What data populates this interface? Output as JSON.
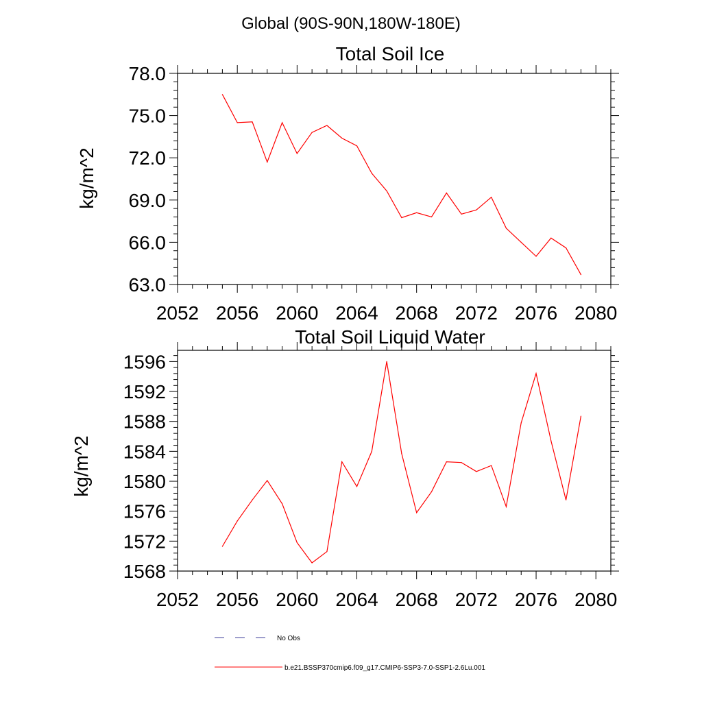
{
  "page": {
    "title": "Global (90S-90N,180W-180E)"
  },
  "legend": {
    "items": [
      {
        "label": "No Obs",
        "style": "dashed",
        "color": "#3d3d99"
      },
      {
        "label": "b.e21.BSSP370cmip6.f09_g17.CMIP6-SSP3-7.0-SSP1-2.6Lu.001",
        "style": "solid",
        "color": "#ff0000"
      }
    ]
  },
  "chart_data": [
    {
      "type": "line",
      "title": "Total Soil Ice",
      "xlabel": "",
      "ylabel": "kg/m^2",
      "xlim": [
        2052,
        2081
      ],
      "ylim": [
        63.0,
        78.0
      ],
      "xticks": [
        2052,
        2056,
        2060,
        2064,
        2068,
        2072,
        2076,
        2080
      ],
      "yticks": [
        63.0,
        66.0,
        69.0,
        72.0,
        75.0,
        78.0
      ],
      "ytick_labels": [
        "63.0",
        "66.0",
        "69.0",
        "72.0",
        "75.0",
        "78.0"
      ],
      "grid": false,
      "x": [
        2055,
        2056,
        2057,
        2058,
        2059,
        2060,
        2061,
        2062,
        2063,
        2064,
        2065,
        2066,
        2067,
        2068,
        2069,
        2070,
        2071,
        2072,
        2073,
        2074,
        2075,
        2076,
        2077,
        2078,
        2079
      ],
      "series": [
        {
          "color": "#ff0000",
          "values": [
            76.5,
            74.5,
            74.55,
            71.7,
            74.5,
            72.3,
            73.8,
            74.3,
            73.4,
            72.85,
            70.9,
            69.65,
            67.75,
            68.1,
            67.8,
            69.5,
            68.0,
            68.3,
            69.2,
            67.0,
            66.0,
            65.0,
            66.3,
            65.6,
            63.7
          ]
        }
      ]
    },
    {
      "type": "line",
      "title": "Total Soil Liquid Water",
      "xlabel": "",
      "ylabel": "kg/m^2",
      "xlim": [
        2052,
        2081
      ],
      "ylim": [
        1568,
        1597.5
      ],
      "xticks": [
        2052,
        2056,
        2060,
        2064,
        2068,
        2072,
        2076,
        2080
      ],
      "yticks": [
        1568,
        1572,
        1576,
        1580,
        1584,
        1588,
        1592,
        1596
      ],
      "ytick_labels": [
        "1568",
        "1572",
        "1576",
        "1580",
        "1584",
        "1588",
        "1592",
        "1596"
      ],
      "grid": false,
      "x": [
        2055,
        2056,
        2057,
        2058,
        2059,
        2060,
        2061,
        2062,
        2063,
        2064,
        2065,
        2066,
        2067,
        2068,
        2069,
        2070,
        2071,
        2072,
        2073,
        2074,
        2075,
        2076,
        2077,
        2078,
        2079
      ],
      "series": [
        {
          "color": "#ff0000",
          "values": [
            1571.3,
            1574.7,
            1577.5,
            1580.1,
            1577.0,
            1571.8,
            1569.1,
            1570.6,
            1582.6,
            1579.3,
            1584.0,
            1596.0,
            1583.7,
            1575.8,
            1578.6,
            1582.6,
            1582.5,
            1581.3,
            1582.1,
            1576.6,
            1587.8,
            1594.4,
            1585.4,
            1577.5,
            1588.7
          ]
        }
      ]
    }
  ]
}
